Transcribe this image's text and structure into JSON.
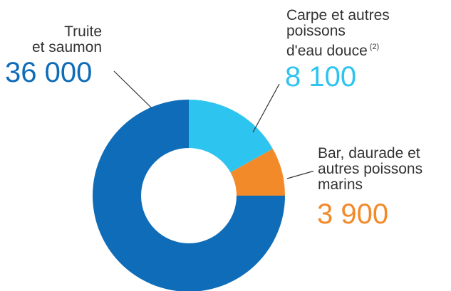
{
  "chart_data": {
    "type": "donut",
    "categories": [
      [
        "Truite",
        "et saumon"
      ],
      [
        "Carpe et autres",
        "poissons",
        "d'eau douce"
      ],
      [
        "Bar, daurade et",
        "autres poissons",
        "marins"
      ]
    ],
    "footnote_mark": "(2)",
    "values": [
      36000,
      8100,
      3900
    ],
    "value_labels": [
      "36 000",
      "8 100",
      "3 900"
    ],
    "colors": [
      "#0f6cb8",
      "#2ec4f0",
      "#f28a2a"
    ]
  }
}
